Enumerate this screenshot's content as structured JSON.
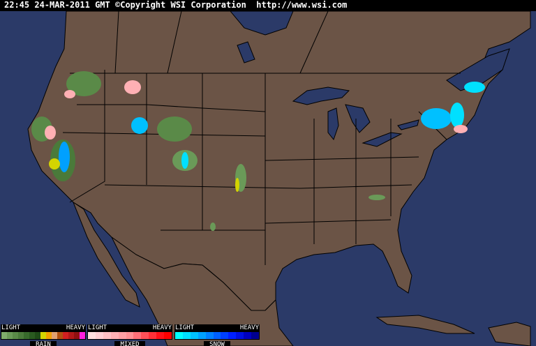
{
  "header": {
    "time": "22:45",
    "date": "24-MAR-2011",
    "timezone": "GMT",
    "copyright": "©Copyright WSI Corporation",
    "url": "http://www.wsi.com"
  },
  "colors": {
    "water": "#2b3a68",
    "land": "#6b5446",
    "borders": "#000000"
  },
  "legend": [
    {
      "type": "RAIN",
      "light": "LIGHT",
      "heavy": "HEAVY",
      "colors": [
        "#7fae6c",
        "#6a9a58",
        "#5a8a48",
        "#4a7a3a",
        "#386a2c",
        "#2a5a20",
        "#1e4a16",
        "#d4d400",
        "#f0a000",
        "#e0a070",
        "#b05010",
        "#d02020",
        "#b01818",
        "#901010",
        "#ff20e0"
      ]
    },
    {
      "type": "MIXED",
      "light": "LIGHT",
      "heavy": "HEAVY",
      "colors": [
        "#ffe0e0",
        "#ffd0d4",
        "#ffc0c4",
        "#ffb0b4",
        "#ffa0a4",
        "#ff9094",
        "#ff7078",
        "#ff5058",
        "#ff3038",
        "#ff1018",
        "#ff0000"
      ]
    },
    {
      "type": "SNOW",
      "light": "LIGHT",
      "heavy": "HEAVY",
      "colors": [
        "#00ffff",
        "#00e0ff",
        "#00c0ff",
        "#00a0ff",
        "#0080ff",
        "#0060ff",
        "#0040ff",
        "#0020ff",
        "#0010e0",
        "#0000c0",
        "#000090"
      ]
    }
  ]
}
